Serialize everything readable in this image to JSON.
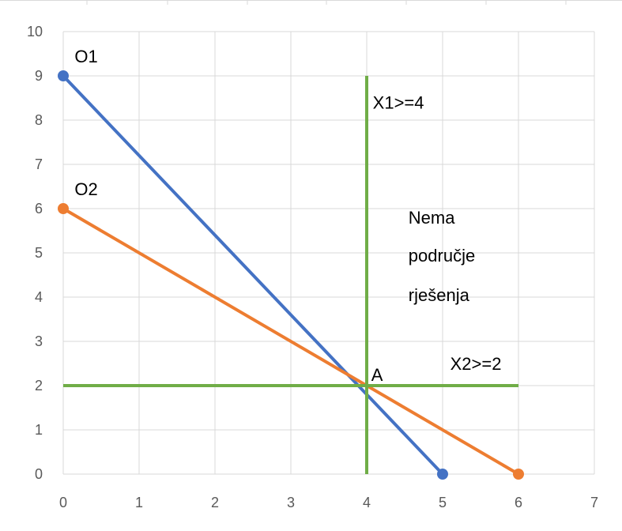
{
  "chart_data": {
    "type": "line",
    "title": "",
    "xlabel": "",
    "ylabel": "",
    "xlim": [
      0,
      7
    ],
    "ylim": [
      0,
      10
    ],
    "grid": true,
    "legend": "none",
    "x_ticks": [
      "0",
      "1",
      "2",
      "3",
      "4",
      "5",
      "6",
      "7"
    ],
    "y_ticks": [
      "0",
      "1",
      "2",
      "3",
      "4",
      "5",
      "6",
      "7",
      "8",
      "9",
      "10"
    ],
    "series": [
      {
        "x": [
          0,
          5
        ],
        "y": [
          9,
          0
        ],
        "color": "#4472C4",
        "markers": true
      },
      {
        "x": [
          0,
          6
        ],
        "y": [
          6,
          0
        ],
        "color": "#ED7D31",
        "markers": true
      },
      {
        "x": [
          4,
          4
        ],
        "y": [
          0,
          9
        ],
        "color": "#70AD47",
        "markers": false
      },
      {
        "x": [
          0,
          6
        ],
        "y": [
          2,
          2
        ],
        "color": "#70AD47",
        "markers": false
      }
    ],
    "annotations": [
      {
        "text": "O1",
        "x": 0.15,
        "y": 9.45
      },
      {
        "text": "O2",
        "x": 0.15,
        "y": 6.45
      },
      {
        "text": "X1>=4",
        "x": 4.08,
        "y": 8.4
      },
      {
        "text": "Nema",
        "x": 4.55,
        "y": 5.8
      },
      {
        "text": "područje",
        "x": 4.55,
        "y": 4.95
      },
      {
        "text": "rješenja",
        "x": 4.55,
        "y": 4.05
      },
      {
        "text": "A",
        "x": 4.06,
        "y": 2.25
      },
      {
        "text": "X2>=2",
        "x": 5.1,
        "y": 2.5
      }
    ]
  }
}
